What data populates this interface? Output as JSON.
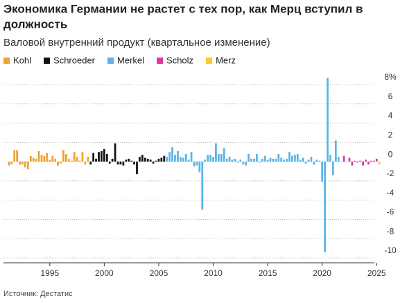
{
  "chart_data": {
    "type": "bar",
    "title": [
      "Экономика Германии не растет с тех пор, как Мерц вступил в",
      "должность"
    ],
    "subtitle": "Валовой внутренний продукт (квартальное изменение)",
    "source": "Источник: Дестатис",
    "xlim": [
      1990.75,
      2025.75
    ],
    "xticks": [
      1995,
      2000,
      2005,
      2010,
      2015,
      2020,
      2025
    ],
    "ylim": [
      -10.5,
      8.5
    ],
    "yticks": [
      {
        "value": 8,
        "label": "8%"
      },
      6,
      4,
      2,
      0,
      -2,
      -4,
      -6,
      -8,
      -10
    ],
    "grid": true,
    "series": [
      {
        "name": "Kohl",
        "color": "#f0a030",
        "x": [
          1991.25,
          1991.5,
          1991.75,
          1992,
          1992.25,
          1992.5,
          1992.75,
          1993,
          1993.25,
          1993.5,
          1993.75,
          1994,
          1994.25,
          1994.5,
          1994.75,
          1995,
          1995.25,
          1995.5,
          1995.75,
          1996,
          1996.25,
          1996.5,
          1996.75,
          1997,
          1997.25,
          1997.5,
          1997.75,
          1998,
          1998.25,
          1998.5
        ],
        "values": [
          -0.4,
          -0.3,
          1.2,
          1.2,
          -0.3,
          -0.3,
          -0.6,
          -0.8,
          0.6,
          0.4,
          0.3,
          1.1,
          0.7,
          0.6,
          0.9,
          0.2,
          0.6,
          0.3,
          -0.4,
          -0.2,
          1.2,
          0.8,
          0.3,
          0.1,
          1.0,
          0.5,
          0.1,
          1.0,
          -0.3,
          0.5
        ]
      },
      {
        "name": "Schroeder",
        "color": "#111111",
        "x": [
          1998.75,
          1999,
          1999.25,
          1999.5,
          1999.75,
          2000,
          2000.25,
          2000.5,
          2000.75,
          2001,
          2001.25,
          2001.5,
          2001.75,
          2002,
          2002.25,
          2002.5,
          2002.75,
          2003,
          2003.25,
          2003.5,
          2003.75,
          2004,
          2004.25,
          2004.5,
          2004.75,
          2005,
          2005.25,
          2005.5
        ],
        "values": [
          -0.3,
          0.9,
          0.3,
          1.0,
          1.1,
          1.3,
          0.8,
          -0.2,
          0.3,
          1.9,
          -0.3,
          -0.3,
          -0.4,
          0.2,
          0.3,
          0.1,
          -0.3,
          -1.3,
          0.5,
          0.7,
          0.4,
          0.3,
          0.2,
          -0.2,
          0.1,
          0.3,
          0.4,
          0.6
        ]
      },
      {
        "name": "Merkel",
        "color": "#5ab4e6",
        "x": [
          2005.75,
          2006,
          2006.25,
          2006.5,
          2006.75,
          2007,
          2007.25,
          2007.5,
          2007.75,
          2008,
          2008.25,
          2008.5,
          2008.75,
          2009,
          2009.25,
          2009.5,
          2009.75,
          2010,
          2010.25,
          2010.5,
          2010.75,
          2011,
          2011.25,
          2011.5,
          2011.75,
          2012,
          2012.25,
          2012.5,
          2012.75,
          2013,
          2013.25,
          2013.5,
          2013.75,
          2014,
          2014.25,
          2014.5,
          2014.75,
          2015,
          2015.25,
          2015.5,
          2015.75,
          2016,
          2016.25,
          2016.5,
          2016.75,
          2017,
          2017.25,
          2017.5,
          2017.75,
          2018,
          2018.25,
          2018.5,
          2018.75,
          2019,
          2019.25,
          2019.5,
          2019.75,
          2020,
          2020.25,
          2020.5,
          2020.75,
          2021,
          2021.25,
          2021.5,
          2021.75
        ],
        "values": [
          0.5,
          1.0,
          1.5,
          0.7,
          1.1,
          0.5,
          0.4,
          0.8,
          0.2,
          1.0,
          -0.5,
          -0.4,
          -1.1,
          -5.0,
          0.2,
          0.7,
          0.7,
          0.5,
          1.9,
          0.8,
          0.8,
          1.4,
          0.3,
          0.5,
          0.2,
          0.3,
          -0.1,
          0.2,
          -0.3,
          -0.4,
          0.8,
          0.3,
          0.3,
          0.8,
          -0.1,
          0.3,
          0.6,
          0.2,
          0.4,
          0.3,
          0.3,
          0.8,
          0.4,
          0.2,
          0.3,
          1.0,
          0.6,
          0.7,
          0.8,
          0.2,
          0.4,
          -0.2,
          0.2,
          0.5,
          -0.3,
          0.2,
          0.1,
          -2.1,
          -9.4,
          8.7,
          0.7,
          -1.4,
          2.2,
          0.5,
          0.0
        ]
      },
      {
        "name": "Scholz",
        "color": "#e0359b",
        "x": [
          2022,
          2022.25,
          2022.5,
          2022.75,
          2023,
          2023.25,
          2023.5,
          2023.75,
          2024,
          2024.25,
          2024.5,
          2024.75,
          2025
        ],
        "values": [
          0.6,
          0.0,
          0.4,
          -0.4,
          0.1,
          -0.1,
          0.1,
          -0.4,
          0.2,
          -0.3,
          0.1,
          0.1,
          0.3
        ]
      },
      {
        "name": "Merz",
        "color": "#f5cc2a",
        "x": [
          2025.25
        ],
        "values": [
          -0.3
        ]
      }
    ]
  }
}
